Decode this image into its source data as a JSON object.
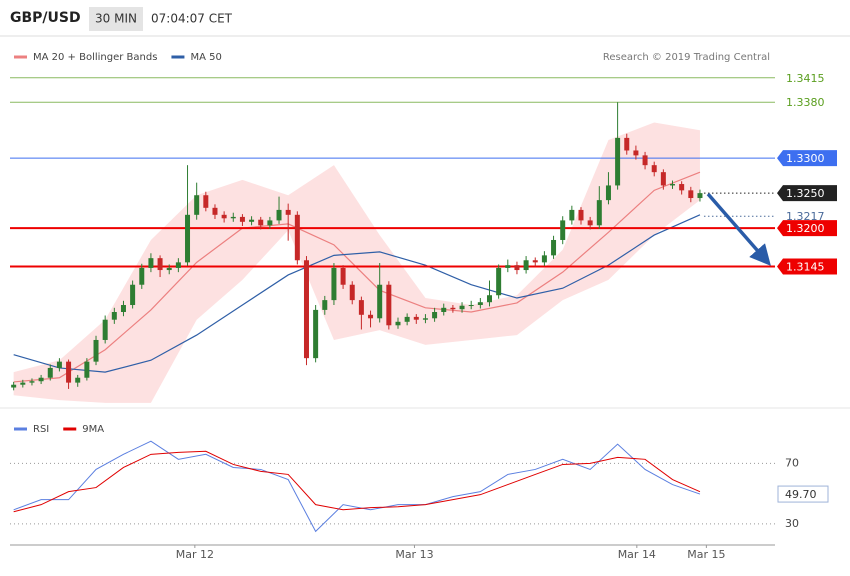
{
  "header": {
    "symbol": "GBP/USD",
    "interval": "30 MIN",
    "time": "07:04:07 CET"
  },
  "chart_data": [
    {
      "type": "candlestick",
      "source": "Research © 2019 Trading Central",
      "up_color": "#2e7d32",
      "down_color": "#c62828",
      "xlim": [
        -0.4,
        83.2
      ],
      "ylim": [
        1.2947,
        1.3469
      ],
      "xticks": [
        {
          "value": 19.8,
          "label": "Mar 12"
        },
        {
          "value": 43.8,
          "label": "Mar 13"
        },
        {
          "value": 68.1,
          "label": "Mar 14"
        },
        {
          "value": 75.7,
          "label": "Mar 15"
        }
      ],
      "candles": [
        [
          1.2972,
          1.298,
          1.2968,
          1.2976
        ],
        [
          1.2976,
          1.2983,
          1.2972,
          1.2979
        ],
        [
          1.2979,
          1.2985,
          1.2975,
          1.2981
        ],
        [
          1.2981,
          1.299,
          1.2977,
          1.2986
        ],
        [
          1.2986,
          1.3005,
          1.2982,
          1.3
        ],
        [
          1.3,
          1.3014,
          1.2995,
          1.3009
        ],
        [
          1.3009,
          1.3012,
          1.297,
          1.2979
        ],
        [
          1.2979,
          1.299,
          1.2973,
          1.2986
        ],
        [
          1.2986,
          1.3014,
          1.2982,
          1.3009
        ],
        [
          1.3009,
          1.3046,
          1.3004,
          1.304
        ],
        [
          1.304,
          1.3075,
          1.3035,
          1.3069
        ],
        [
          1.3069,
          1.3086,
          1.3063,
          1.308
        ],
        [
          1.308,
          1.3096,
          1.3074,
          1.309
        ],
        [
          1.309,
          1.3125,
          1.3085,
          1.3119
        ],
        [
          1.3119,
          1.3149,
          1.3113,
          1.3143
        ],
        [
          1.3143,
          1.3164,
          1.3137,
          1.3157
        ],
        [
          1.3157,
          1.3161,
          1.313,
          1.314
        ],
        [
          1.314,
          1.3148,
          1.3134,
          1.3143
        ],
        [
          1.3143,
          1.3157,
          1.3137,
          1.3151
        ],
        [
          1.3151,
          1.329,
          1.3146,
          1.3219
        ],
        [
          1.3219,
          1.3265,
          1.3212,
          1.3247
        ],
        [
          1.3247,
          1.3252,
          1.3224,
          1.3229
        ],
        [
          1.3229,
          1.3234,
          1.3213,
          1.3219
        ],
        [
          1.3219,
          1.3224,
          1.3208,
          1.3214
        ],
        [
          1.3214,
          1.3222,
          1.3209,
          1.3216
        ],
        [
          1.3216,
          1.322,
          1.3203,
          1.3209
        ],
        [
          1.3209,
          1.3217,
          1.3204,
          1.3212
        ],
        [
          1.3212,
          1.3216,
          1.3198,
          1.3204
        ],
        [
          1.3204,
          1.3216,
          1.3199,
          1.3211
        ],
        [
          1.3211,
          1.3245,
          1.3206,
          1.3226
        ],
        [
          1.3226,
          1.3235,
          1.3182,
          1.3219
        ],
        [
          1.3219,
          1.3224,
          1.3148,
          1.3154
        ],
        [
          1.3154,
          1.316,
          1.3004,
          1.3014
        ],
        [
          1.3014,
          1.309,
          1.3008,
          1.3083
        ],
        [
          1.3083,
          1.3103,
          1.3076,
          1.3097
        ],
        [
          1.3097,
          1.315,
          1.309,
          1.3143
        ],
        [
          1.3143,
          1.3147,
          1.3113,
          1.3119
        ],
        [
          1.3119,
          1.3124,
          1.3091,
          1.3097
        ],
        [
          1.3097,
          1.3102,
          1.3055,
          1.3076
        ],
        [
          1.3076,
          1.3082,
          1.3058,
          1.3071
        ],
        [
          1.3071,
          1.315,
          1.3065,
          1.3119
        ],
        [
          1.3119,
          1.3124,
          1.3055,
          1.3061
        ],
        [
          1.3061,
          1.3072,
          1.3056,
          1.3066
        ],
        [
          1.3066,
          1.3078,
          1.3061,
          1.3073
        ],
        [
          1.3073,
          1.3077,
          1.3063,
          1.3069
        ],
        [
          1.3069,
          1.3077,
          1.3064,
          1.3071
        ],
        [
          1.3071,
          1.3086,
          1.3066,
          1.308
        ],
        [
          1.308,
          1.3092,
          1.3075,
          1.3086
        ],
        [
          1.3086,
          1.309,
          1.3079,
          1.3084
        ],
        [
          1.3084,
          1.3094,
          1.3079,
          1.3089
        ],
        [
          1.3089,
          1.3096,
          1.3084,
          1.309
        ],
        [
          1.309,
          1.31,
          1.3085,
          1.3094
        ],
        [
          1.3094,
          1.3125,
          1.3088,
          1.3104
        ],
        [
          1.3104,
          1.3148,
          1.3099,
          1.3143
        ],
        [
          1.3143,
          1.3155,
          1.3137,
          1.3147
        ],
        [
          1.3147,
          1.3152,
          1.3134,
          1.314
        ],
        [
          1.314,
          1.316,
          1.3135,
          1.3154
        ],
        [
          1.3154,
          1.3158,
          1.3145,
          1.3151
        ],
        [
          1.3151,
          1.3167,
          1.3146,
          1.3161
        ],
        [
          1.3161,
          1.3189,
          1.3156,
          1.3183
        ],
        [
          1.3183,
          1.3217,
          1.3177,
          1.3211
        ],
        [
          1.3211,
          1.3232,
          1.3205,
          1.3226
        ],
        [
          1.3226,
          1.323,
          1.3205,
          1.3211
        ],
        [
          1.3211,
          1.3216,
          1.3198,
          1.3204
        ],
        [
          1.3204,
          1.326,
          1.3199,
          1.324
        ],
        [
          1.324,
          1.328,
          1.3234,
          1.3261
        ],
        [
          1.3261,
          1.338,
          1.3255,
          1.3329
        ],
        [
          1.3329,
          1.3335,
          1.3305,
          1.3311
        ],
        [
          1.3311,
          1.3318,
          1.3298,
          1.3304
        ],
        [
          1.3304,
          1.3309,
          1.3284,
          1.329
        ],
        [
          1.329,
          1.3295,
          1.3274,
          1.328
        ],
        [
          1.328,
          1.3284,
          1.3255,
          1.3261
        ],
        [
          1.3261,
          1.3268,
          1.3256,
          1.3263
        ],
        [
          1.3263,
          1.3267,
          1.3248,
          1.3254
        ],
        [
          1.3254,
          1.3259,
          1.3237,
          1.3243
        ],
        [
          1.3243,
          1.3255,
          1.3238,
          1.325
        ]
      ],
      "series": [
        {
          "name": "MA 20 + Bollinger Bands",
          "color": "#ec8080",
          "band_color": "#fde1e1",
          "x": [
            0,
            5,
            10,
            15,
            20,
            25,
            30,
            35,
            40,
            45,
            50,
            55,
            60,
            65,
            70,
            75
          ],
          "values": [
            1.298,
            1.2986,
            1.3026,
            1.3083,
            1.3151,
            1.32,
            1.3206,
            1.3176,
            1.3111,
            1.3086,
            1.308,
            1.3093,
            1.3137,
            1.3194,
            1.3254,
            1.328
          ],
          "upper": [
            1.2994,
            1.3011,
            1.3069,
            1.3183,
            1.3247,
            1.3269,
            1.3247,
            1.329,
            1.319,
            1.31,
            1.309,
            1.3104,
            1.3169,
            1.3326,
            1.3351,
            1.334
          ],
          "lower": [
            1.2961,
            1.2954,
            1.295,
            1.295,
            1.3069,
            1.3126,
            1.3197,
            1.304,
            1.3054,
            1.3033,
            1.304,
            1.3047,
            1.3097,
            1.3126,
            1.319,
            1.324
          ]
        },
        {
          "name": "MA 50",
          "color": "#2f5fa7",
          "x": [
            0,
            5,
            10,
            15,
            20,
            25,
            30,
            35,
            40,
            45,
            50,
            55,
            60,
            65,
            70,
            75
          ],
          "values": [
            1.3019,
            1.3,
            1.2994,
            1.3011,
            1.3047,
            1.309,
            1.3133,
            1.3161,
            1.3166,
            1.3147,
            1.3119,
            1.31,
            1.3114,
            1.3147,
            1.319,
            1.3219
          ]
        }
      ],
      "levels": [
        {
          "value": 1.3415,
          "label": "1.3415",
          "color": "#5a9e1e",
          "line": "solid",
          "boxed": false
        },
        {
          "value": 1.338,
          "label": "1.3380",
          "color": "#5a9e1e",
          "line": "solid",
          "boxed": false
        },
        {
          "value": 1.33,
          "label": "1.3300",
          "color": "#3d6ff0",
          "line": "solid",
          "boxed": true
        },
        {
          "value": 1.325,
          "label": "1.3250",
          "color": "#222222",
          "line": "dotted",
          "boxed": true
        },
        {
          "value": 1.3217,
          "label": "1.3217",
          "color": "#4a6a9a",
          "line": "dotted",
          "boxed": false
        },
        {
          "value": 1.32,
          "label": "1.3200",
          "color": "#ee0000",
          "line": "solid",
          "boxed": true
        },
        {
          "value": 1.3145,
          "label": "1.3145",
          "color": "#ee0000",
          "line": "solid",
          "boxed": true
        }
      ]
    },
    {
      "type": "line",
      "xlim": [
        -0.4,
        83.2
      ],
      "ylim": [
        16,
        104
      ],
      "yticks": [
        70,
        30
      ],
      "grid": true,
      "x": [
        0,
        3,
        6,
        9,
        12,
        15,
        18,
        21,
        24,
        27,
        30,
        33,
        36,
        39,
        42,
        45,
        48,
        51,
        54,
        57,
        60,
        63,
        66,
        69,
        72,
        75
      ],
      "series": [
        {
          "name": "RSI",
          "color": "#5b7fe0",
          "values": [
            39.3,
            46,
            46,
            66,
            76,
            84.7,
            72.7,
            76,
            67.3,
            66,
            59.3,
            25,
            42.7,
            39.3,
            42.7,
            42.7,
            48,
            51.3,
            62.7,
            66,
            72.7,
            66,
            82.7,
            66,
            56,
            49.7
          ]
        },
        {
          "name": "9MA",
          "color": "#e00000",
          "values": [
            38,
            42.7,
            51.3,
            54,
            67.3,
            76,
            77.3,
            78,
            69.3,
            64.7,
            62.7,
            42.7,
            39.3,
            40.7,
            41.3,
            42.7,
            46,
            49.3,
            56,
            62.7,
            69.3,
            70,
            74,
            72.7,
            59.3,
            51.3
          ]
        }
      ],
      "last_label": {
        "value": 49.7,
        "label": "49.70"
      }
    }
  ]
}
